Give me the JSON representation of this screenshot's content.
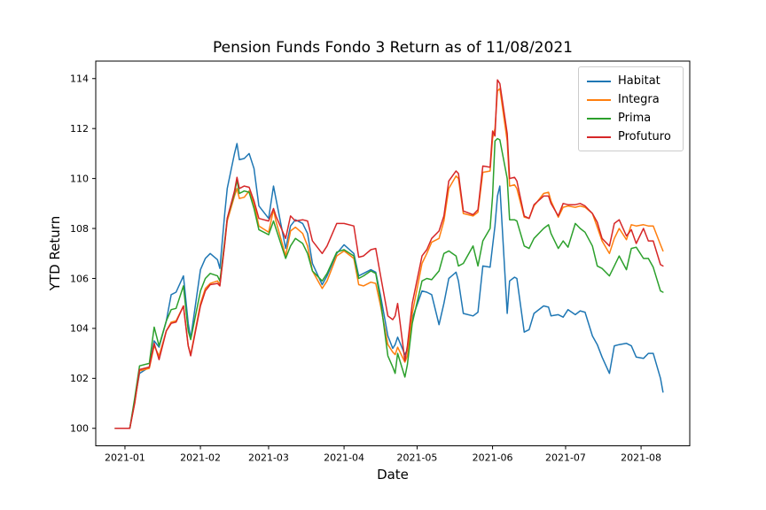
{
  "chart_data": {
    "type": "line",
    "title": "Pension Funds Fondo 3 Return as of 11/08/2021",
    "xlabel": "Date",
    "ylabel": "YTD Return",
    "grid": false,
    "legend_position": "upper right",
    "frame_color": "#000000",
    "background_color": "#ffffff",
    "x_domain": [
      "2020-12-20",
      "2021-08-21"
    ],
    "y_domain": [
      99.3,
      114.7
    ],
    "y_ticks": [
      100,
      102,
      104,
      106,
      108,
      110,
      112,
      114
    ],
    "x_ticks": [
      {
        "date": "2021-01-01",
        "label": "2021-01"
      },
      {
        "date": "2021-02-01",
        "label": "2021-02"
      },
      {
        "date": "2021-03-01",
        "label": "2021-03"
      },
      {
        "date": "2021-04-01",
        "label": "2021-04"
      },
      {
        "date": "2021-05-01",
        "label": "2021-05"
      },
      {
        "date": "2021-06-01",
        "label": "2021-06"
      },
      {
        "date": "2021-07-01",
        "label": "2021-07"
      },
      {
        "date": "2021-08-01",
        "label": "2021-08"
      }
    ],
    "dates": [
      "2020-12-28",
      "2021-01-03",
      "2021-01-05",
      "2021-01-07",
      "2021-01-11",
      "2021-01-13",
      "2021-01-15",
      "2021-01-18",
      "2021-01-20",
      "2021-01-22",
      "2021-01-25",
      "2021-01-27",
      "2021-01-28",
      "2021-02-01",
      "2021-02-03",
      "2021-02-05",
      "2021-02-08",
      "2021-02-09",
      "2021-02-11",
      "2021-02-12",
      "2021-02-15",
      "2021-02-16",
      "2021-02-17",
      "2021-02-19",
      "2021-02-21",
      "2021-02-23",
      "2021-02-25",
      "2021-03-01",
      "2021-03-03",
      "2021-03-04",
      "2021-03-08",
      "2021-03-10",
      "2021-03-12",
      "2021-03-15",
      "2021-03-17",
      "2021-03-19",
      "2021-03-23",
      "2021-03-25",
      "2021-03-29",
      "2021-04-01",
      "2021-04-05",
      "2021-04-07",
      "2021-04-09",
      "2021-04-12",
      "2021-04-14",
      "2021-04-16",
      "2021-04-19",
      "2021-04-21",
      "2021-04-22",
      "2021-04-23",
      "2021-04-26",
      "2021-04-27",
      "2021-04-29",
      "2021-05-03",
      "2021-05-05",
      "2021-05-07",
      "2021-05-10",
      "2021-05-12",
      "2021-05-14",
      "2021-05-17",
      "2021-05-18",
      "2021-05-20",
      "2021-05-24",
      "2021-05-26",
      "2021-05-28",
      "2021-05-31",
      "2021-06-01",
      "2021-06-02",
      "2021-06-03",
      "2021-06-04",
      "2021-06-07",
      "2021-06-08",
      "2021-06-10",
      "2021-06-11",
      "2021-06-14",
      "2021-06-16",
      "2021-06-18",
      "2021-06-22",
      "2021-06-24",
      "2021-06-25",
      "2021-06-28",
      "2021-06-30",
      "2021-07-02",
      "2021-07-05",
      "2021-07-07",
      "2021-07-09",
      "2021-07-12",
      "2021-07-14",
      "2021-07-16",
      "2021-07-19",
      "2021-07-21",
      "2021-07-23",
      "2021-07-26",
      "2021-07-28",
      "2021-07-30",
      "2021-08-02",
      "2021-08-04",
      "2021-08-06",
      "2021-08-09",
      "2021-08-10"
    ],
    "series": [
      {
        "name": "Habitat",
        "color": "#1f77b4",
        "values": [
          100,
          100,
          101.1,
          102.2,
          102.45,
          103.5,
          103.25,
          104.3,
          105.35,
          105.45,
          106.1,
          104.2,
          103.6,
          106.35,
          106.8,
          107.0,
          106.75,
          106.4,
          108.6,
          109.6,
          111.0,
          111.4,
          110.75,
          110.8,
          111.0,
          110.4,
          108.9,
          108.4,
          109.7,
          109.2,
          107.2,
          108.1,
          108.35,
          108.2,
          107.8,
          106.6,
          105.75,
          106.1,
          107.0,
          107.35,
          107.0,
          106.1,
          106.2,
          106.35,
          106.25,
          105.3,
          103.7,
          103.2,
          103.35,
          103.65,
          102.95,
          103.15,
          104.4,
          105.5,
          105.45,
          105.35,
          104.15,
          105.0,
          106.0,
          106.25,
          105.9,
          104.6,
          104.5,
          104.65,
          106.5,
          106.45,
          107.3,
          108.1,
          109.3,
          109.7,
          104.6,
          105.9,
          106.05,
          106.0,
          103.85,
          103.95,
          104.6,
          104.9,
          104.85,
          104.5,
          104.55,
          104.45,
          104.75,
          104.55,
          104.7,
          104.65,
          103.7,
          103.35,
          102.85,
          102.2,
          103.3,
          103.35,
          103.4,
          103.3,
          102.85,
          102.8,
          103.0,
          103.0,
          102.0,
          101.45
        ]
      },
      {
        "name": "Integra",
        "color": "#ff7f0e",
        "values": [
          100,
          100,
          101.0,
          102.3,
          102.4,
          103.3,
          102.9,
          103.9,
          104.25,
          104.3,
          104.9,
          103.3,
          102.95,
          105.0,
          105.6,
          105.8,
          105.9,
          105.75,
          107.4,
          108.3,
          109.3,
          109.6,
          109.2,
          109.25,
          109.5,
          109.0,
          108.1,
          107.85,
          108.75,
          108.3,
          106.9,
          107.9,
          108.05,
          107.8,
          107.3,
          106.3,
          105.6,
          105.9,
          106.9,
          107.1,
          106.8,
          105.75,
          105.7,
          105.85,
          105.8,
          104.9,
          103.35,
          103.05,
          102.95,
          103.25,
          102.65,
          102.9,
          104.6,
          106.6,
          107.0,
          107.45,
          107.6,
          108.3,
          109.6,
          110.1,
          110.0,
          108.6,
          108.5,
          108.65,
          110.25,
          110.3,
          111.6,
          112.0,
          113.5,
          113.6,
          111.5,
          109.7,
          109.75,
          109.6,
          108.45,
          108.4,
          108.9,
          109.4,
          109.45,
          109.1,
          108.45,
          108.85,
          108.9,
          108.85,
          108.9,
          108.85,
          108.6,
          108.05,
          107.5,
          107.0,
          107.6,
          108.0,
          107.55,
          108.15,
          108.1,
          108.15,
          108.1,
          108.1,
          107.35,
          107.1
        ]
      },
      {
        "name": "Prima",
        "color": "#2ca02c",
        "values": [
          100,
          100,
          101.2,
          102.5,
          102.6,
          104.05,
          103.3,
          104.3,
          104.75,
          104.8,
          105.7,
          103.9,
          103.55,
          105.5,
          106.0,
          106.2,
          106.1,
          105.9,
          107.5,
          108.4,
          109.4,
          109.95,
          109.4,
          109.5,
          109.45,
          108.8,
          107.95,
          107.75,
          108.3,
          108.0,
          106.8,
          107.3,
          107.6,
          107.4,
          107.0,
          106.3,
          105.9,
          106.2,
          107.05,
          107.15,
          106.9,
          106.0,
          106.1,
          106.3,
          106.2,
          105.1,
          102.9,
          102.45,
          102.2,
          103.0,
          102.05,
          102.55,
          104.2,
          105.9,
          106.0,
          105.95,
          106.3,
          107.0,
          107.1,
          106.9,
          106.5,
          106.6,
          107.3,
          106.5,
          107.5,
          108.0,
          109.3,
          111.5,
          111.6,
          111.55,
          110.0,
          108.35,
          108.35,
          108.3,
          107.3,
          107.2,
          107.6,
          108.0,
          108.15,
          107.8,
          107.2,
          107.5,
          107.25,
          108.2,
          108.0,
          107.85,
          107.3,
          106.5,
          106.4,
          106.1,
          106.5,
          106.9,
          106.35,
          107.2,
          107.25,
          106.8,
          106.8,
          106.45,
          105.5,
          105.45
        ]
      },
      {
        "name": "Profuturo",
        "color": "#d62728",
        "values": [
          100,
          100,
          101.0,
          102.35,
          102.45,
          103.4,
          102.75,
          103.9,
          104.2,
          104.25,
          104.9,
          103.3,
          102.9,
          104.9,
          105.5,
          105.75,
          105.8,
          105.7,
          107.4,
          108.4,
          109.5,
          110.05,
          109.6,
          109.7,
          109.65,
          109.1,
          108.4,
          108.3,
          108.8,
          108.5,
          107.6,
          108.5,
          108.3,
          108.35,
          108.3,
          107.5,
          107.0,
          107.3,
          108.2,
          108.2,
          108.1,
          106.85,
          106.9,
          107.15,
          107.2,
          106.1,
          104.5,
          104.35,
          104.5,
          105.0,
          102.7,
          103.3,
          105.0,
          106.9,
          107.15,
          107.6,
          107.9,
          108.5,
          109.9,
          110.3,
          110.2,
          108.7,
          108.55,
          108.75,
          110.5,
          110.45,
          111.9,
          111.7,
          113.95,
          113.8,
          111.8,
          110.0,
          110.05,
          109.9,
          108.5,
          108.4,
          108.95,
          109.3,
          109.3,
          109.0,
          108.5,
          109.0,
          108.95,
          108.95,
          109.0,
          108.9,
          108.6,
          108.25,
          107.6,
          107.3,
          108.2,
          108.35,
          107.7,
          107.95,
          107.4,
          108.0,
          107.5,
          107.5,
          106.55,
          106.5
        ]
      }
    ]
  }
}
